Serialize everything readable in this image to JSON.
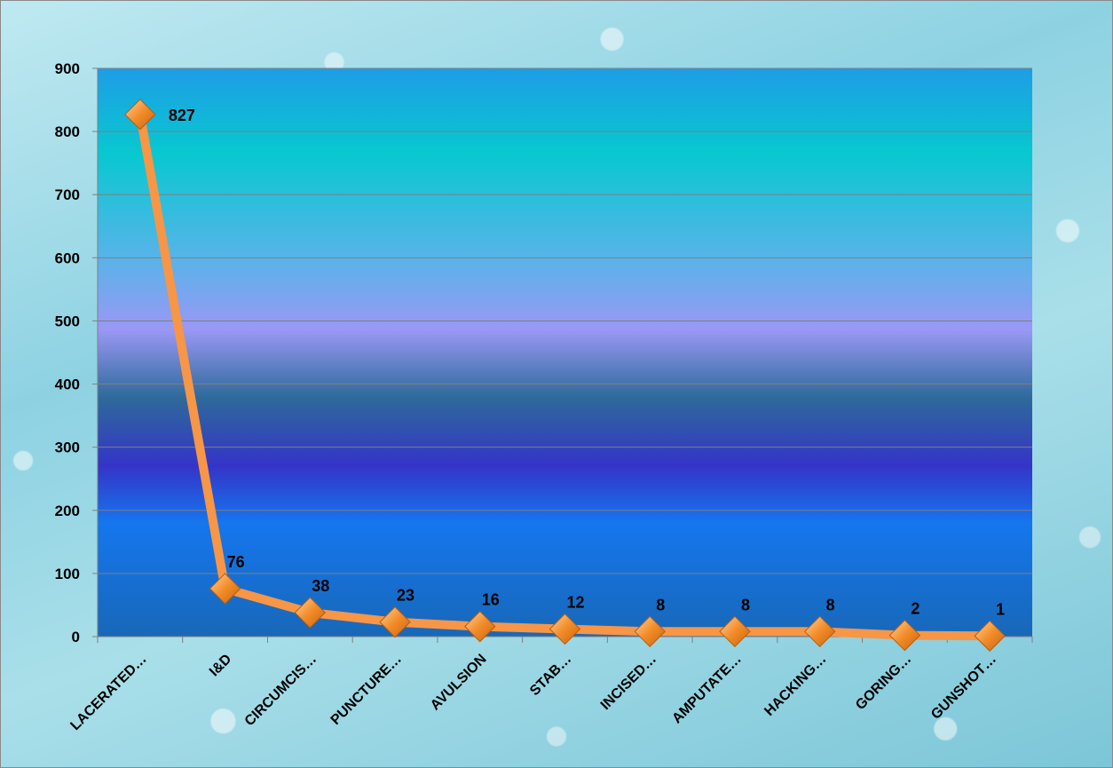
{
  "chart_data": {
    "type": "line",
    "categories": [
      "LACERATED…",
      "I&D",
      "CIRCUMCIS…",
      "PUNCTURE…",
      "AVULSION",
      "STAB…",
      "INCISED…",
      "AMPUTATE…",
      "HACKING…",
      "GORING…",
      "GUNSHOT…"
    ],
    "values": [
      827,
      76,
      38,
      23,
      16,
      12,
      8,
      8,
      8,
      2,
      1
    ],
    "data_labels": [
      "827",
      "76",
      "38",
      "23",
      "16",
      "12",
      "8",
      "8",
      "8",
      "2",
      "1"
    ],
    "ylim": [
      0,
      900
    ],
    "yticks": [
      "0",
      "100",
      "200",
      "300",
      "400",
      "500",
      "600",
      "700",
      "800",
      "900"
    ],
    "title": "",
    "xlabel": "",
    "ylabel": "",
    "grid": true,
    "legend": "none",
    "colors": {
      "line": "#f79646",
      "marker": "#f28c28",
      "plot_top": "#1fa2e8",
      "plot_mid": "#9b9bff",
      "plot_dark": "#2f2fc8",
      "plot_bottom": "#1a6fc0"
    }
  }
}
